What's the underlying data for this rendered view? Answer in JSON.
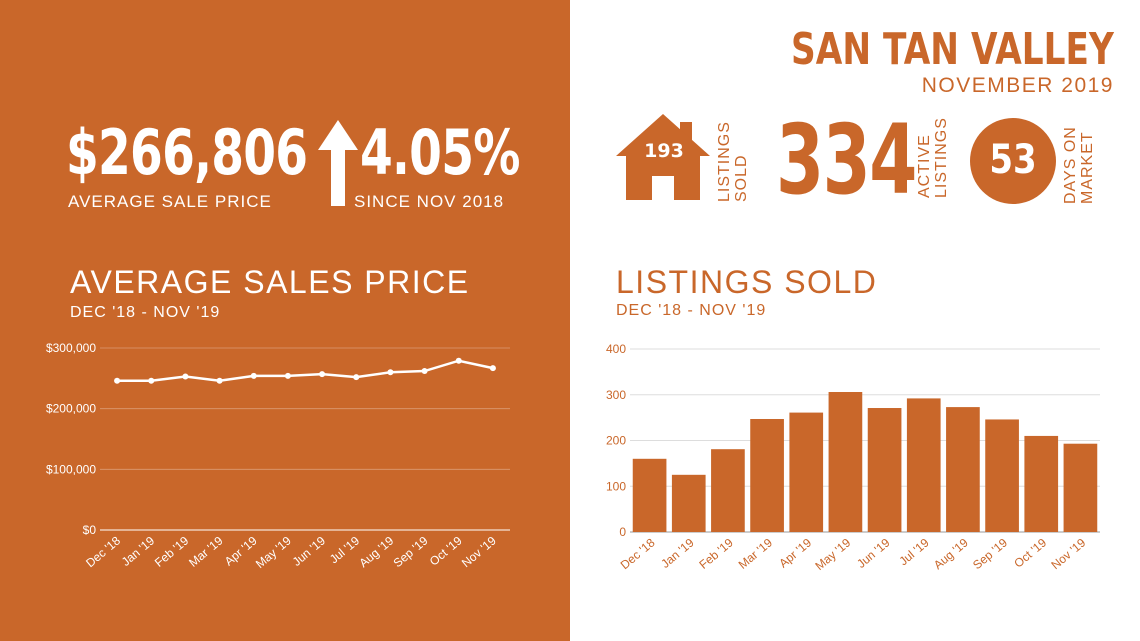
{
  "header": {
    "city": "SAN TAN VALLEY",
    "date": "NOVEMBER 2019"
  },
  "left": {
    "avg_price_value": "$266,806",
    "avg_price_label": "AVERAGE  SALE PRICE",
    "change_value": "4.05%",
    "change_label": "SINCE NOV 2018",
    "change_icon": "arrow-up-icon"
  },
  "stats": {
    "listings_sold_value": "193",
    "listings_sold_label": [
      "LISTINGS",
      "SOLD"
    ],
    "listings_sold_icon": "house-icon",
    "active_listings_value": "334",
    "active_listings_label": [
      "ACTIVE",
      "LISTINGS"
    ],
    "days_on_market_value": "53",
    "days_on_market_label": [
      "DAYS ON",
      "MARKET"
    ]
  },
  "colors": {
    "brand": "#c9672a",
    "white": "#ffffff"
  },
  "chart_data": [
    {
      "type": "line",
      "title": "AVERAGE SALES PRICE",
      "subtitle": "DEC '18 - NOV '19",
      "categories": [
        "Dec '18",
        "Jan '19",
        "Feb '19",
        "Mar '19",
        "Apr '19",
        "May '19",
        "Jun '19",
        "Jul '19",
        "Aug '19",
        "Sep '19",
        "Oct '19",
        "Nov '19"
      ],
      "series": [
        {
          "values": [
            246000,
            246000,
            253000,
            246000,
            254000,
            254000,
            257000,
            252000,
            260000,
            262000,
            279000,
            266806
          ]
        }
      ],
      "ylim": [
        0,
        300000
      ],
      "yticks": [
        0,
        100000,
        200000,
        300000
      ],
      "ytick_labels": [
        "$0",
        "$100,000",
        "$200,000",
        "$300,000"
      ],
      "grid": true,
      "legend": "none"
    },
    {
      "type": "bar",
      "title": "LISTINGS SOLD",
      "subtitle": "DEC '18 - NOV '19",
      "categories": [
        "Dec '18",
        "Jan '19",
        "Feb '19",
        "Mar '19",
        "Apr '19",
        "May '19",
        "Jun '19",
        "Jul '19",
        "Aug '19",
        "Sep '19",
        "Oct '19",
        "Nov '19"
      ],
      "series": [
        {
          "values": [
            160,
            125,
            181,
            247,
            261,
            306,
            271,
            292,
            273,
            246,
            210,
            193
          ]
        }
      ],
      "ylim": [
        0,
        400
      ],
      "yticks": [
        0,
        100,
        200,
        300,
        400
      ],
      "ytick_labels": [
        "0",
        "100",
        "200",
        "300",
        "400"
      ],
      "grid": true,
      "legend": "none"
    }
  ]
}
